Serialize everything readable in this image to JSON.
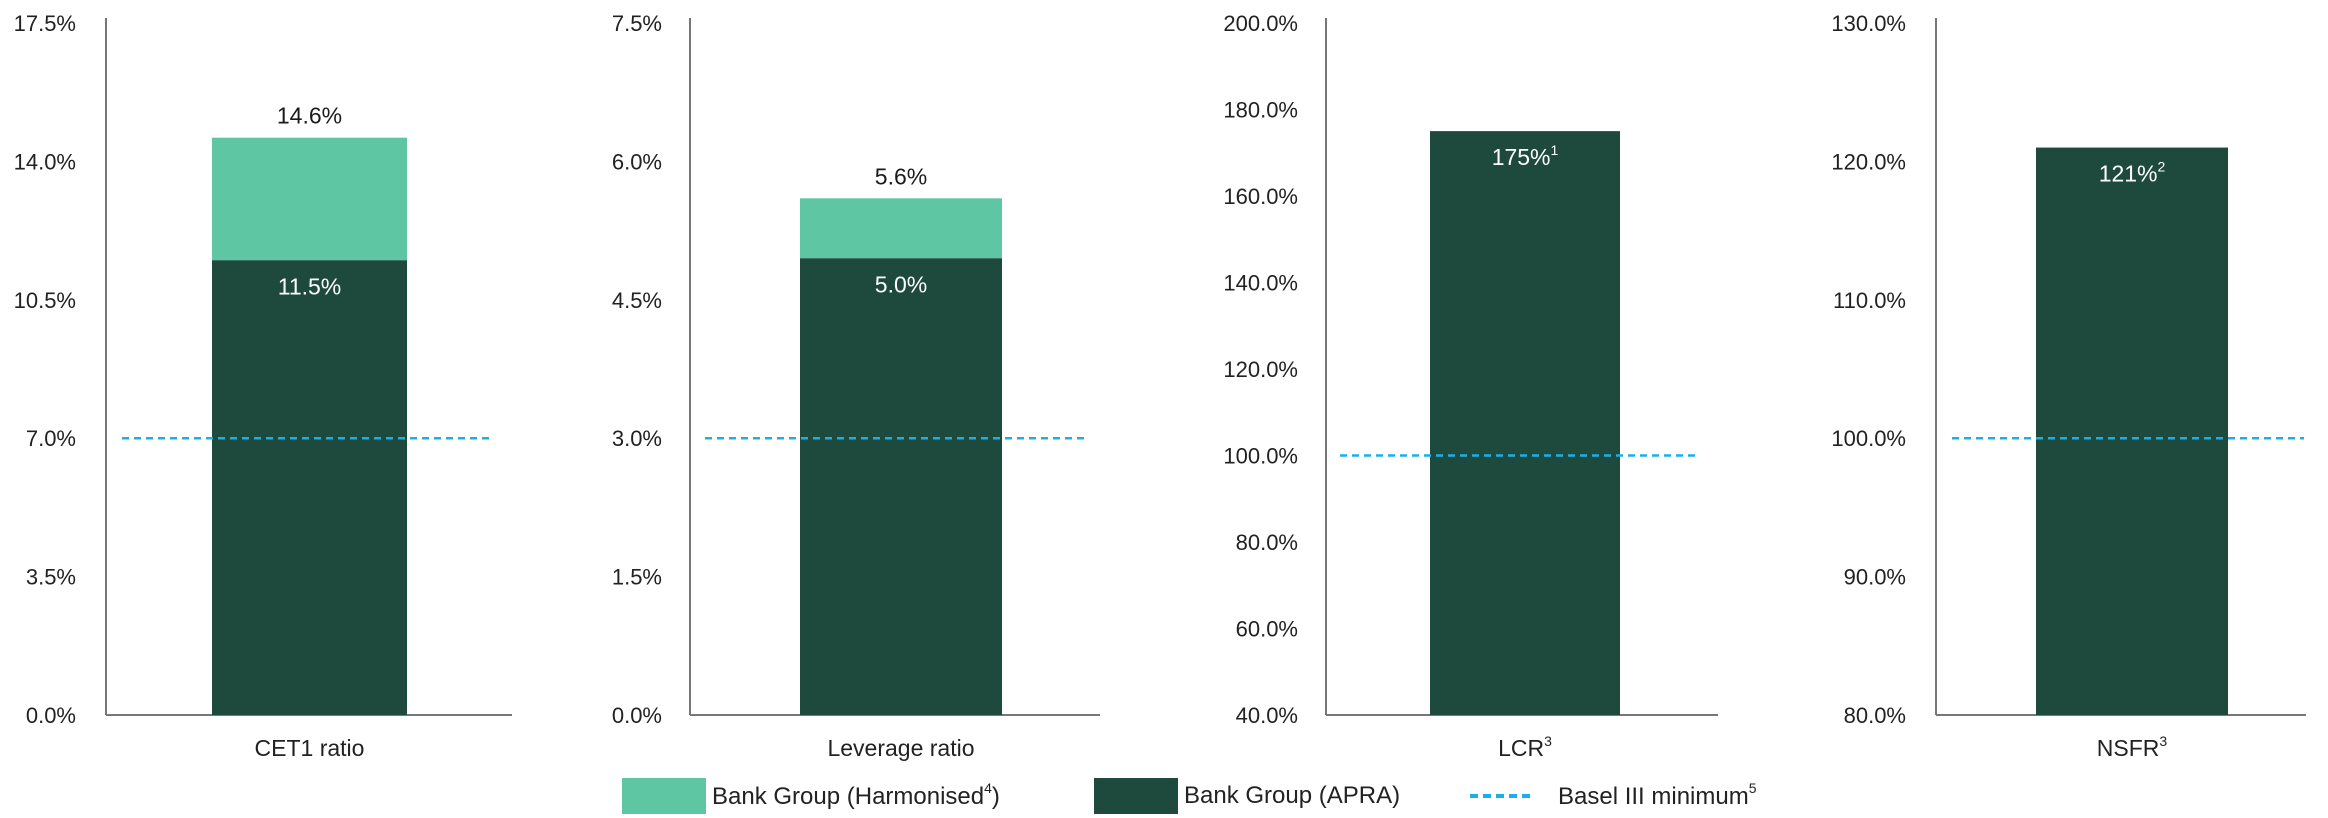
{
  "chart_data": [
    {
      "type": "bar",
      "category": "CET1 ratio",
      "category_sup": "",
      "ylim": [
        0,
        17.5
      ],
      "yticks": [
        "0.0%",
        "3.5%",
        "7.0%",
        "10.5%",
        "14.0%",
        "17.5%"
      ],
      "ytick_values": [
        0,
        3.5,
        7,
        10.5,
        14,
        17.5
      ],
      "series": [
        {
          "name": "Bank Group (APRA)",
          "value": 11.5,
          "label": "11.5%",
          "label_sup": ""
        },
        {
          "name": "Bank Group (Harmonised4)",
          "value": 14.6,
          "label": "14.6%",
          "label_sup": ""
        }
      ],
      "basel_minimum": 7.0
    },
    {
      "type": "bar",
      "category": "Leverage ratio",
      "category_sup": "",
      "ylim": [
        0,
        7.5
      ],
      "yticks": [
        "0.0%",
        "1.5%",
        "3.0%",
        "4.5%",
        "6.0%",
        "7.5%"
      ],
      "ytick_values": [
        0,
        1.5,
        3,
        4.5,
        6,
        7.5
      ],
      "series": [
        {
          "name": "Bank Group (APRA)",
          "value": 4.95,
          "label": "5.0%",
          "label_sup": ""
        },
        {
          "name": "Bank Group (Harmonised4)",
          "value": 5.6,
          "label": "5.6%",
          "label_sup": ""
        }
      ],
      "basel_minimum": 3.0
    },
    {
      "type": "bar",
      "category": "LCR",
      "category_sup": "3",
      "ylim": [
        40,
        200
      ],
      "yticks": [
        "40.0%",
        "60.0%",
        "80.0%",
        "100.0%",
        "120.0%",
        "140.0%",
        "160.0%",
        "180.0%",
        "200.0%"
      ],
      "ytick_values": [
        40,
        60,
        80,
        100,
        120,
        140,
        160,
        180,
        200
      ],
      "series": [
        {
          "name": "Bank Group (APRA)",
          "value": 175,
          "label": "175%",
          "label_sup": "1"
        }
      ],
      "basel_minimum": 100.0
    },
    {
      "type": "bar",
      "category": "NSFR",
      "category_sup": "3",
      "ylim": [
        80,
        130
      ],
      "yticks": [
        "80.0%",
        "90.0%",
        "100.0%",
        "110.0%",
        "120.0%",
        "130.0%"
      ],
      "ytick_values": [
        80,
        90,
        100,
        110,
        120,
        130
      ],
      "series": [
        {
          "name": "Bank Group (APRA)",
          "value": 121,
          "label": "121%",
          "label_sup": "2"
        }
      ],
      "basel_minimum": 100.0
    }
  ],
  "legend": {
    "harmonised": {
      "text": "Bank Group (Harmonised",
      "sup": "4",
      "close": ")"
    },
    "apra": {
      "text": "Bank Group (APRA)"
    },
    "basel": {
      "text": "Basel III minimum",
      "sup": "5"
    }
  },
  "colors": {
    "apra": "#1e4a3e",
    "harmonised": "#5fc6a4",
    "basel": "#1ab0e6",
    "axis": "#777777"
  }
}
